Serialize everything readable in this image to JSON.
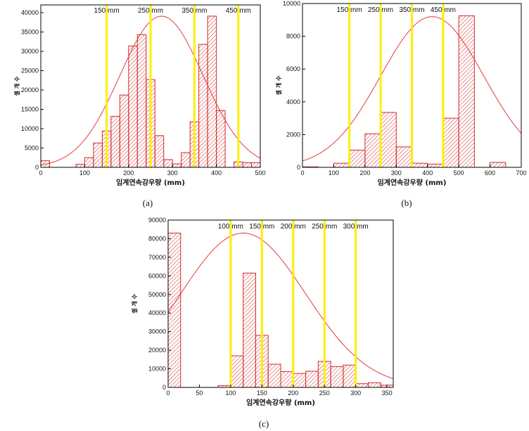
{
  "colors": {
    "bar_stroke": "#d42a2a",
    "hatch": "#d42a2a",
    "fit_curve": "#e33b3b",
    "marker_line": "#ffee00",
    "axis": "#000000"
  },
  "chart_data": [
    {
      "type": "bar",
      "panel_label": "(a)",
      "xlabel": "임계연속강우량 (mm)",
      "ylabel": "셀 개 수",
      "xlim": [
        0,
        500
      ],
      "ylim": [
        0,
        42000
      ],
      "xticks": [
        0,
        100,
        200,
        300,
        400,
        500
      ],
      "yticks": [
        0,
        5000,
        10000,
        15000,
        20000,
        25000,
        30000,
        35000,
        40000
      ],
      "bin_width": 20,
      "bins": [
        {
          "x0": 0,
          "value": 1700
        },
        {
          "x0": 80,
          "value": 800
        },
        {
          "x0": 100,
          "value": 2500
        },
        {
          "x0": 120,
          "value": 6300
        },
        {
          "x0": 140,
          "value": 9400
        },
        {
          "x0": 160,
          "value": 13200
        },
        {
          "x0": 180,
          "value": 18700
        },
        {
          "x0": 200,
          "value": 31400
        },
        {
          "x0": 220,
          "value": 34300
        },
        {
          "x0": 240,
          "value": 22700
        },
        {
          "x0": 260,
          "value": 8200
        },
        {
          "x0": 280,
          "value": 2000
        },
        {
          "x0": 300,
          "value": 900
        },
        {
          "x0": 320,
          "value": 3800
        },
        {
          "x0": 340,
          "value": 11800
        },
        {
          "x0": 360,
          "value": 31800
        },
        {
          "x0": 380,
          "value": 39100
        },
        {
          "x0": 400,
          "value": 14700
        },
        {
          "x0": 440,
          "value": 1400
        },
        {
          "x0": 460,
          "value": 1200
        },
        {
          "x0": 480,
          "value": 1200
        }
      ],
      "fit": {
        "mean": 275,
        "sd": 95,
        "peak": 39100
      },
      "markers": [
        {
          "x": 150,
          "label": "150 mm"
        },
        {
          "x": 250,
          "label": "250 mm"
        },
        {
          "x": 350,
          "label": "350 mm"
        },
        {
          "x": 450,
          "label": "450 mm"
        }
      ]
    },
    {
      "type": "bar",
      "panel_label": "(b)",
      "xlabel": "임계연속강우량 (mm)",
      "ylabel": "셀 개 수",
      "xlim": [
        0,
        700
      ],
      "ylim": [
        0,
        10000
      ],
      "xticks": [
        0,
        100,
        200,
        300,
        400,
        500,
        600,
        700
      ],
      "yticks": [
        0,
        2000,
        4000,
        6000,
        8000,
        10000
      ],
      "bin_width": 50,
      "bins": [
        {
          "x0": 0,
          "value": 30
        },
        {
          "x0": 100,
          "value": 250
        },
        {
          "x0": 150,
          "value": 1050
        },
        {
          "x0": 200,
          "value": 2050
        },
        {
          "x0": 250,
          "value": 3350
        },
        {
          "x0": 300,
          "value": 1250
        },
        {
          "x0": 350,
          "value": 250
        },
        {
          "x0": 400,
          "value": 200
        },
        {
          "x0": 450,
          "value": 3000
        },
        {
          "x0": 500,
          "value": 9250
        },
        {
          "x0": 600,
          "value": 300
        }
      ],
      "fit": {
        "mean": 415,
        "sd": 165,
        "peak": 9200
      },
      "markers": [
        {
          "x": 150,
          "label": "150 mm"
        },
        {
          "x": 250,
          "label": "250 mm"
        },
        {
          "x": 350,
          "label": "350 mm"
        },
        {
          "x": 450,
          "label": "450 mm"
        }
      ]
    },
    {
      "type": "bar",
      "panel_label": "(c)",
      "xlabel": "임계연속강우량 (mm)",
      "ylabel": "셀 개 수",
      "xlim": [
        0,
        360
      ],
      "ylim": [
        0,
        90000
      ],
      "xticks": [
        0,
        50,
        100,
        150,
        200,
        250,
        300,
        350
      ],
      "yticks": [
        0,
        10000,
        20000,
        30000,
        40000,
        50000,
        60000,
        70000,
        80000,
        90000
      ],
      "bin_width": 20,
      "bins": [
        {
          "x0": 0,
          "value": 83000
        },
        {
          "x0": 80,
          "value": 1000
        },
        {
          "x0": 100,
          "value": 17000
        },
        {
          "x0": 120,
          "value": 61500
        },
        {
          "x0": 140,
          "value": 28000
        },
        {
          "x0": 160,
          "value": 12500
        },
        {
          "x0": 180,
          "value": 8500
        },
        {
          "x0": 200,
          "value": 7500
        },
        {
          "x0": 220,
          "value": 8700
        },
        {
          "x0": 240,
          "value": 14000
        },
        {
          "x0": 260,
          "value": 11200
        },
        {
          "x0": 280,
          "value": 12000
        },
        {
          "x0": 300,
          "value": 2000
        },
        {
          "x0": 320,
          "value": 2500
        },
        {
          "x0": 340,
          "value": 1200
        }
      ],
      "fit": {
        "mean": 120,
        "sd": 100,
        "peak": 83000
      },
      "markers": [
        {
          "x": 100,
          "label": "100 mm"
        },
        {
          "x": 150,
          "label": "150 mm"
        },
        {
          "x": 200,
          "label": "200 mm"
        },
        {
          "x": 250,
          "label": "250 mm"
        },
        {
          "x": 300,
          "label": "300 mm"
        }
      ]
    }
  ]
}
